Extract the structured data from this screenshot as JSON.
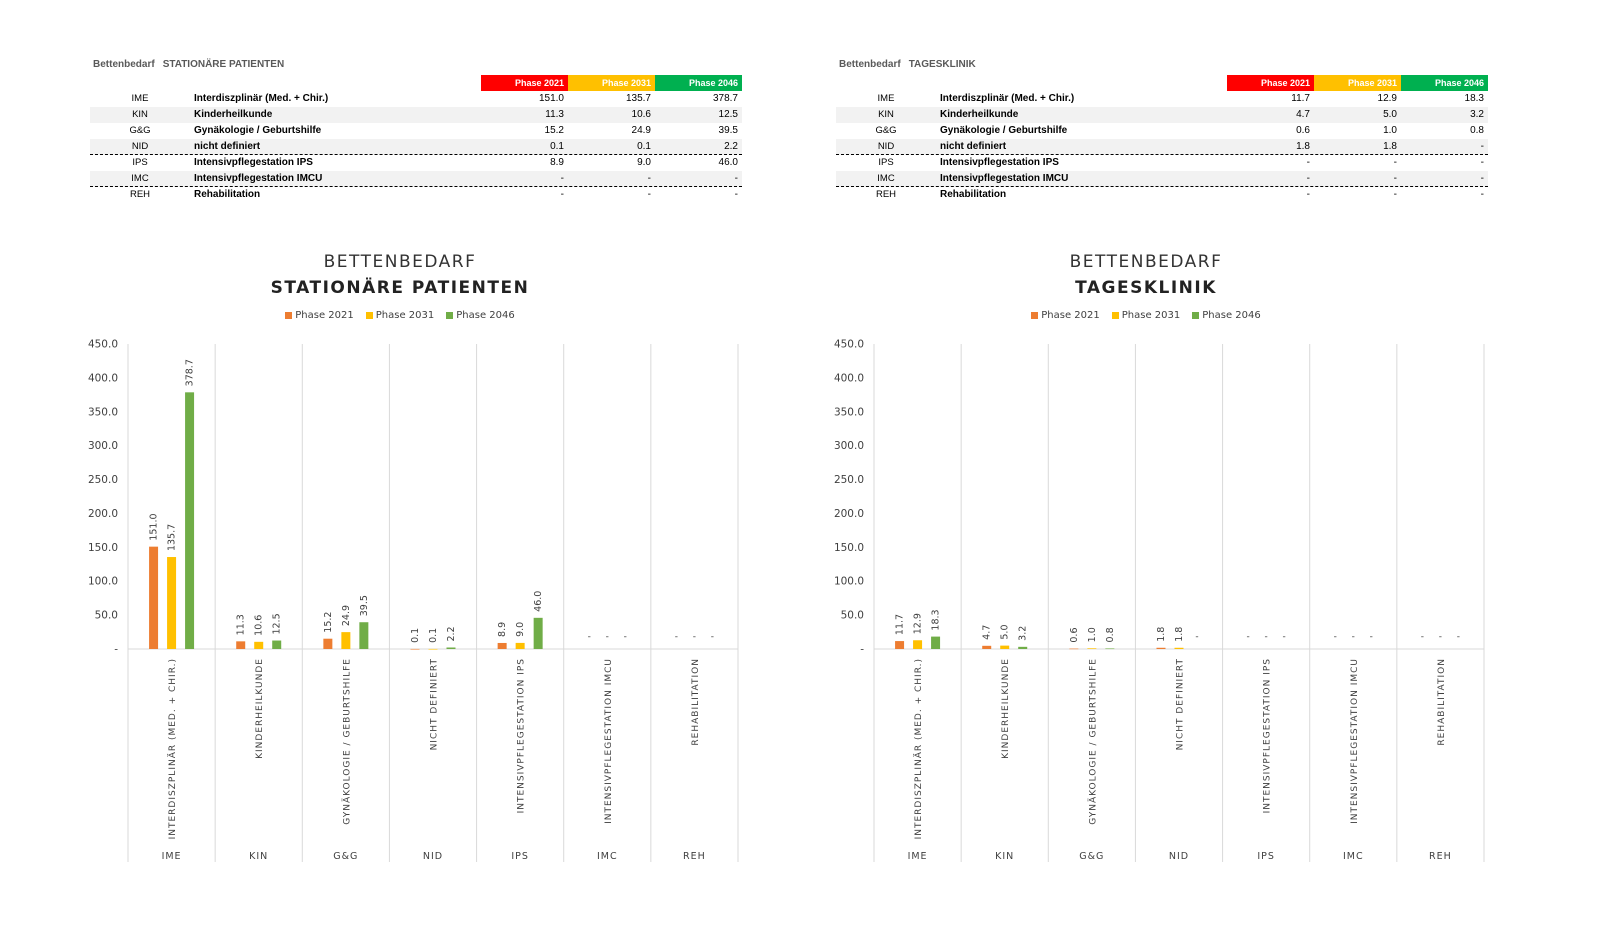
{
  "colors": {
    "phase_2021": "#ed7d31",
    "phase_2031": "#ffc000",
    "phase_2046": "#70ad47",
    "header_2021": "#ff0000",
    "header_2031": "#ffc000",
    "header_2046": "#00b050"
  },
  "phase_headers": [
    "Phase 2021",
    "Phase 2031",
    "Phase 2046"
  ],
  "tables": [
    {
      "title_a": "Bettenbedarf",
      "title_b": "STATIONÄRE PATIENTEN",
      "rows": [
        {
          "code": "IME",
          "label": "Interdiszplinär (Med. + Chir.)",
          "v": [
            "151.0",
            "135.7",
            "378.7"
          ]
        },
        {
          "code": "KIN",
          "label": "Kinderheilkunde",
          "v": [
            "11.3",
            "10.6",
            "12.5"
          ]
        },
        {
          "code": "G&G",
          "label": "Gynäkologie / Geburtshilfe",
          "v": [
            "15.2",
            "24.9",
            "39.5"
          ]
        },
        {
          "code": "NID",
          "label": "nicht definiert",
          "v": [
            "0.1",
            "0.1",
            "2.2"
          ]
        },
        {
          "code": "IPS",
          "label": "Intensivpflegestation IPS",
          "v": [
            "8.9",
            "9.0",
            "46.0"
          ]
        },
        {
          "code": "IMC",
          "label": "Intensivpflegestation IMCU",
          "v": [
            "-",
            "-",
            "-"
          ]
        },
        {
          "code": "REH",
          "label": "Rehabilitation",
          "v": [
            "-",
            "-",
            "-"
          ]
        }
      ]
    },
    {
      "title_a": "Bettenbedarf",
      "title_b": "TAGESKLINIK",
      "rows": [
        {
          "code": "IME",
          "label": "Interdiszplinär (Med. + Chir.)",
          "v": [
            "11.7",
            "12.9",
            "18.3"
          ]
        },
        {
          "code": "KIN",
          "label": "Kinderheilkunde",
          "v": [
            "4.7",
            "5.0",
            "3.2"
          ]
        },
        {
          "code": "G&G",
          "label": "Gynäkologie / Geburtshilfe",
          "v": [
            "0.6",
            "1.0",
            "0.8"
          ]
        },
        {
          "code": "NID",
          "label": "nicht definiert",
          "v": [
            "1.8",
            "1.8",
            "-"
          ]
        },
        {
          "code": "IPS",
          "label": "Intensivpflegestation IPS",
          "v": [
            "-",
            "-",
            "-"
          ]
        },
        {
          "code": "IMC",
          "label": "Intensivpflegestation IMCU",
          "v": [
            "-",
            "-",
            "-"
          ]
        },
        {
          "code": "REH",
          "label": "Rehabilitation",
          "v": [
            "-",
            "-",
            "-"
          ]
        }
      ]
    }
  ],
  "chart_data": [
    {
      "type": "bar",
      "title": "BETTENBEDARF",
      "subtitle": "STATIONÄRE PATIENTEN",
      "categories": [
        "INTERDISZPLINÄR (MED. + CHIR.)",
        "KINDERHEILKUNDE",
        "GYNÄKOLOGIE / GEBURTSHILFE",
        "NICHT DEFINIERT",
        "INTENSIVPFLEGESTATION IPS",
        "INTENSIVPFLEGESTATION IMCU",
        "REHABILITATION"
      ],
      "group_labels": [
        "IME",
        "KIN",
        "G&G",
        "NID",
        "IPS",
        "IMC",
        "REH"
      ],
      "series": [
        {
          "name": "Phase 2021",
          "values": [
            151.0,
            11.3,
            15.2,
            0.1,
            8.9,
            null,
            null
          ]
        },
        {
          "name": "Phase 2031",
          "values": [
            135.7,
            10.6,
            24.9,
            0.1,
            9.0,
            null,
            null
          ]
        },
        {
          "name": "Phase 2046",
          "values": [
            378.7,
            12.5,
            39.5,
            2.2,
            46.0,
            null,
            null
          ]
        }
      ],
      "yticks": [
        "-",
        "50.0",
        "100.0",
        "150.0",
        "200.0",
        "250.0",
        "300.0",
        "350.0",
        "400.0",
        "450.0"
      ],
      "ylim": [
        0,
        450
      ],
      "legend": "top",
      "grid": "vertical category separators"
    },
    {
      "type": "bar",
      "title": "BETTENBEDARF",
      "subtitle": "TAGESKLINIK",
      "categories": [
        "INTERDISZPLINÄR (MED. + CHIR.)",
        "KINDERHEILKUNDE",
        "GYNÄKOLOGIE / GEBURTSHILFE",
        "NICHT DEFINIERT",
        "INTENSIVPFLEGESTATION IPS",
        "INTENSIVPFLEGESTATION IMCU",
        "REHABILITATION"
      ],
      "group_labels": [
        "IME",
        "KIN",
        "G&G",
        "NID",
        "IPS",
        "IMC",
        "REH"
      ],
      "series": [
        {
          "name": "Phase 2021",
          "values": [
            11.7,
            4.7,
            0.6,
            1.8,
            null,
            null,
            null
          ]
        },
        {
          "name": "Phase 2031",
          "values": [
            12.9,
            5.0,
            1.0,
            1.8,
            null,
            null,
            null
          ]
        },
        {
          "name": "Phase 2046",
          "values": [
            18.3,
            3.2,
            0.8,
            null,
            null,
            null,
            null
          ]
        }
      ],
      "yticks": [
        "-",
        "50.0",
        "100.0",
        "150.0",
        "200.0",
        "250.0",
        "300.0",
        "350.0",
        "400.0",
        "450.0"
      ],
      "ylim": [
        0,
        450
      ],
      "legend": "top",
      "grid": "vertical category separators"
    }
  ]
}
